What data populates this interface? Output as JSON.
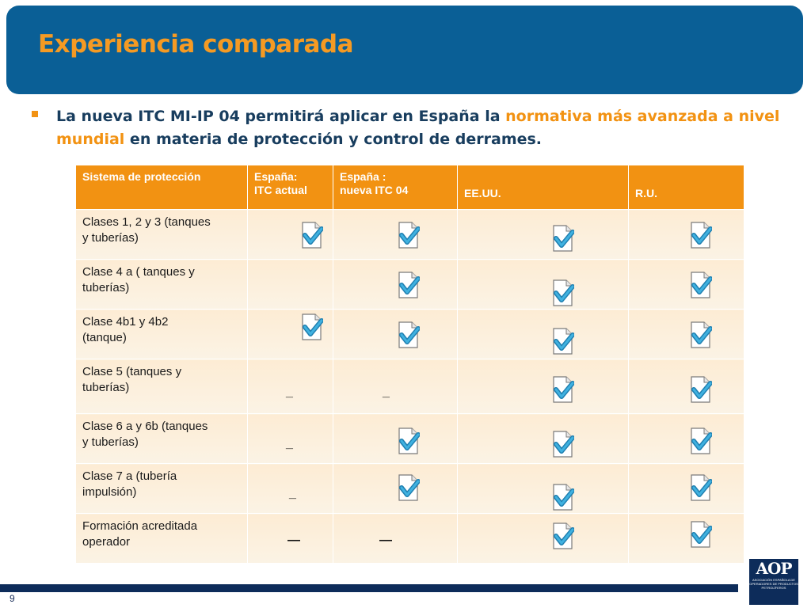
{
  "slide": {
    "title": "Experiencia comparada",
    "bullet": {
      "part1": "La nueva ITC MI-IP 04 permitirá aplicar en España la ",
      "highlight": "normativa más avanzada a nivel mundial",
      "part2": " en materia de protección y control de derrames."
    },
    "page_number": "9",
    "logo": {
      "mark": "AOP",
      "text": "ASOCIACIÓN ESPAÑOLA DE OPERADORES DE PRODUCTOS PETROLÍFEROS"
    }
  },
  "table": {
    "headers": [
      "Sistema de protección",
      "España:\nITC actual",
      "España :\nnueva ITC 04",
      "EE.UU.",
      "R.U."
    ],
    "rows": [
      {
        "label": "Clases 1, 2 y 3 (tanques\ny tuberías)",
        "cells": [
          "check",
          "check",
          "check",
          "check"
        ]
      },
      {
        "label": "Clase 4 a ( tanques y\ntuberías)",
        "cells": [
          "",
          "check",
          "check",
          "check"
        ]
      },
      {
        "label": "Clase 4b1 y 4b2\n(tanque)",
        "cells": [
          "check",
          "check",
          "check",
          "check"
        ]
      },
      {
        "label": "Clase 5 (tanques y\ntuberías)",
        "cells": [
          "_",
          "_",
          "check",
          "check"
        ]
      },
      {
        "label": "Clase 6 a y 6b (tanques\ny tuberías)",
        "cells": [
          "_",
          "check",
          "check",
          "check"
        ]
      },
      {
        "label": "Clase 7 a (tubería\nimpulsión)",
        "cells": [
          "_",
          "check",
          "check",
          "check"
        ]
      },
      {
        "label": "Formación acreditada\noperador",
        "cells": [
          "—",
          "—",
          "check",
          "check"
        ]
      }
    ],
    "icons": {
      "check": "checked-document-icon"
    },
    "colors": {
      "header": "#f29212",
      "accent": "#f29212",
      "title_bar": "#0a5f96"
    }
  }
}
